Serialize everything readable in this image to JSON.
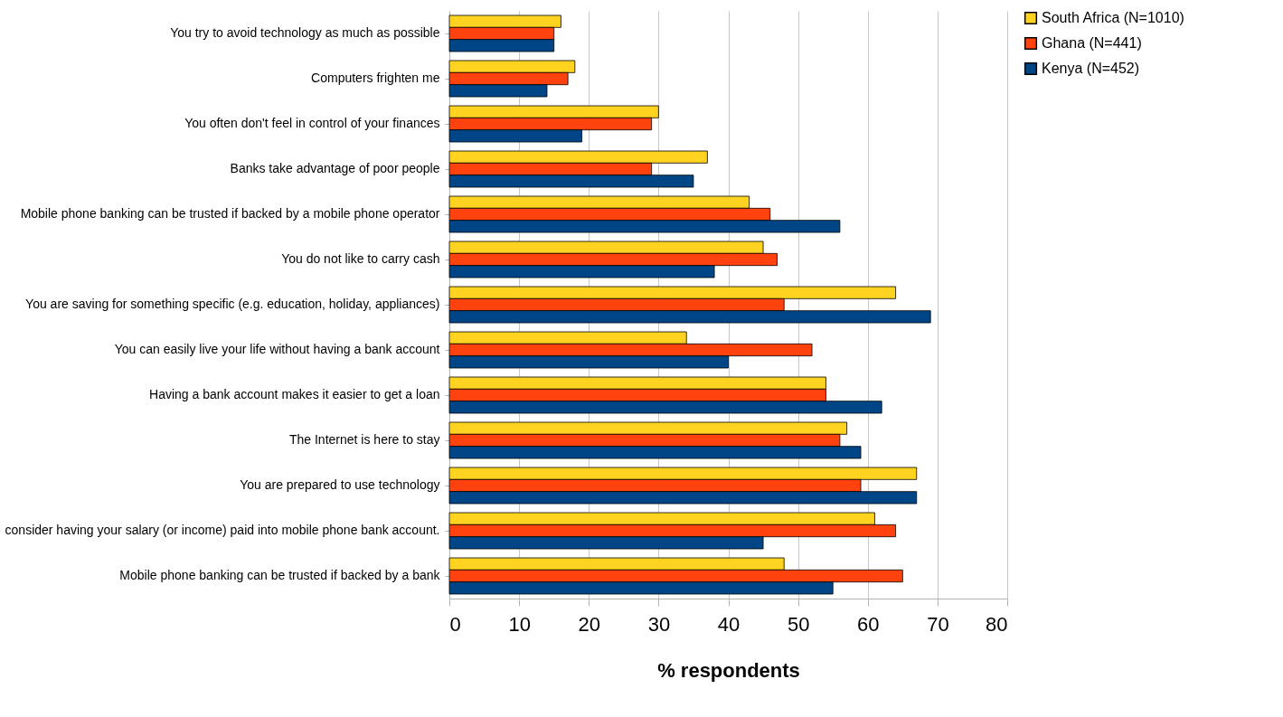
{
  "chart_data": {
    "type": "bar",
    "orientation": "horizontal",
    "xlabel": "% respondents",
    "categories": [
      "You try to avoid technology as much as possible",
      "Computers frighten me",
      "You often don't feel in control of your finances",
      "Banks take advantage of poor people",
      "Mobile phone banking can be trusted if backed by a mobile phone operator",
      "You do not like to carry cash",
      "You are saving for something specific (e.g. education, holiday, appliances)",
      "You can easily live your life without having a bank account",
      "Having a bank account makes it easier to get a loan",
      "The Internet is here to stay",
      "You are prepared to use technology",
      "consider having your salary (or income) paid into mobile phone bank account.",
      "Mobile phone banking can be trusted if backed by a bank"
    ],
    "series": [
      {
        "name": "South Africa (N=1010)",
        "color": "#ffd320",
        "values": [
          16,
          18,
          30,
          37,
          43,
          45,
          64,
          34,
          54,
          57,
          67,
          61,
          48
        ]
      },
      {
        "name": "Ghana (N=441)",
        "color": "#ff420e",
        "values": [
          15,
          17,
          29,
          29,
          46,
          47,
          48,
          52,
          54,
          56,
          59,
          64,
          65
        ]
      },
      {
        "name": "Kenya (N=452)",
        "color": "#004586",
        "values": [
          15,
          14,
          19,
          35,
          56,
          38,
          69,
          40,
          62,
          59,
          67,
          45,
          55
        ]
      }
    ],
    "xlim": [
      0,
      80
    ],
    "xticks": [
      0,
      10,
      20,
      30,
      40,
      50,
      60,
      70,
      80
    ],
    "grid": "x",
    "legend": "right"
  }
}
